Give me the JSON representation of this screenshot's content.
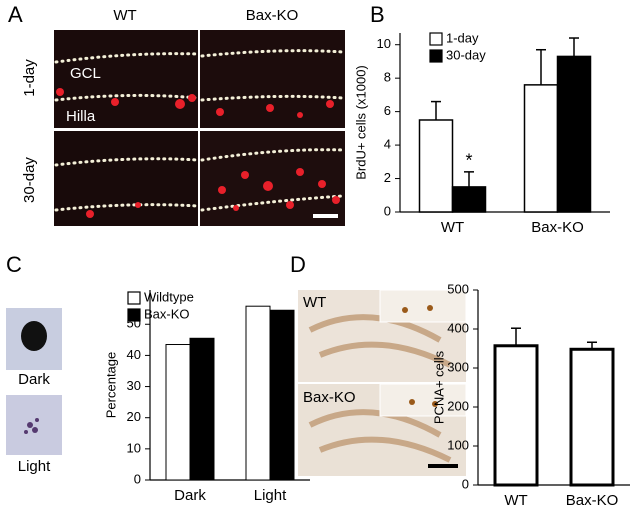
{
  "figure": {
    "panels": [
      "A",
      "B",
      "C",
      "D"
    ],
    "a": {
      "columns": [
        "WT",
        "Bax-KO"
      ],
      "rows": [
        "1-day",
        "30-day"
      ],
      "regions": [
        "GCL",
        "Hilla"
      ]
    },
    "c": {
      "cells": [
        "Dark",
        "Light"
      ]
    },
    "d": {
      "images": [
        "WT",
        "Bax-KO"
      ]
    }
  },
  "chart_data": [
    {
      "type": "bar",
      "ylabel": "BrdU+ cells (x1000)",
      "categories": [
        "WT",
        "Bax-KO"
      ],
      "series": [
        {
          "name": "1-day",
          "color": "#ffffff",
          "values": [
            5.5,
            7.6
          ],
          "errors": [
            1.1,
            2.1
          ]
        },
        {
          "name": "30-day",
          "color": "#000000",
          "values": [
            1.5,
            9.3
          ],
          "errors": [
            0.9,
            1.1
          ]
        }
      ],
      "ylim": [
        0,
        10.7
      ],
      "yticks": [
        0,
        2,
        4,
        6,
        8,
        10
      ],
      "annotation": "*"
    },
    {
      "type": "bar",
      "ylabel": "Percentage",
      "categories": [
        "Dark",
        "Light"
      ],
      "series": [
        {
          "name": "Wildtype",
          "color": "#ffffff",
          "values": [
            43.5,
            55.8
          ]
        },
        {
          "name": "Bax-KO",
          "color": "#000000",
          "values": [
            45.5,
            54.5
          ]
        }
      ],
      "ylim": [
        0,
        61
      ],
      "yticks": [
        0,
        10,
        20,
        30,
        40,
        50
      ]
    },
    {
      "type": "bar",
      "ylabel": "PCNA+ cells",
      "categories": [
        "WT",
        "Bax-KO"
      ],
      "values": [
        357,
        348
      ],
      "errors": [
        45,
        18
      ],
      "color": "#ffffff",
      "ylim": [
        0,
        500
      ],
      "yticks": [
        0,
        100,
        200,
        300,
        400,
        500
      ]
    }
  ]
}
